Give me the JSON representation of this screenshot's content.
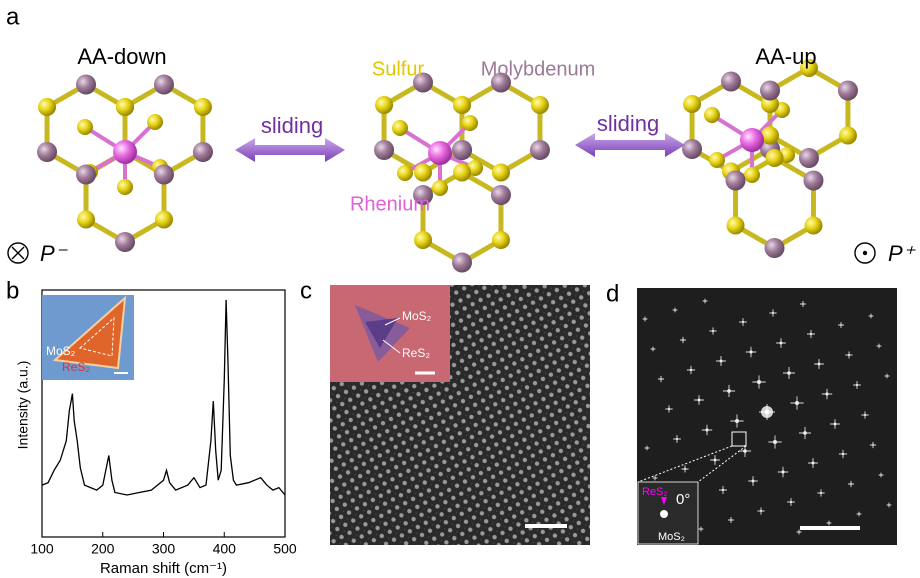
{
  "panel_labels": [
    "a",
    "b",
    "c",
    "d"
  ],
  "panel_a": {
    "left_title": "AA-down",
    "right_title": "AA-up",
    "atom_labels": {
      "sulfur": "Sulfur",
      "molybdenum": "Molybdenum",
      "rhenium": "Rhenium"
    },
    "arrows": [
      "sliding",
      "sliding"
    ],
    "polarization": [
      "P⁻",
      "P⁺"
    ]
  },
  "chart_data": {
    "type": "line",
    "xlabel": "Raman shift (cm⁻¹)",
    "ylabel": "Intensity (a.u.)",
    "x": [
      100,
      110,
      120,
      130,
      140,
      145,
      150,
      153,
      158,
      163,
      170,
      180,
      190,
      200,
      205,
      210,
      215,
      220,
      240,
      260,
      280,
      300,
      305,
      310,
      320,
      340,
      350,
      360,
      370,
      378,
      382,
      386,
      390,
      395,
      400,
      403,
      406,
      410,
      415,
      420,
      440,
      460,
      470,
      480,
      490,
      500
    ],
    "values": [
      0.21,
      0.22,
      0.27,
      0.31,
      0.39,
      0.51,
      0.58,
      0.47,
      0.39,
      0.28,
      0.21,
      0.2,
      0.19,
      0.21,
      0.27,
      0.33,
      0.23,
      0.18,
      0.17,
      0.18,
      0.19,
      0.23,
      0.27,
      0.22,
      0.19,
      0.21,
      0.24,
      0.2,
      0.21,
      0.39,
      0.55,
      0.35,
      0.23,
      0.27,
      0.64,
      0.96,
      0.72,
      0.33,
      0.23,
      0.21,
      0.22,
      0.24,
      0.21,
      0.19,
      0.2,
      0.17
    ],
    "color": "#000000",
    "xlim": [
      100,
      500
    ],
    "xticks": [
      100,
      200,
      300,
      400,
      500
    ],
    "ylim": [
      0,
      1
    ]
  },
  "panel_b_inset": {
    "labels": [
      "MoS₂",
      "ReS₂"
    ]
  },
  "panel_c_inset": {
    "labels": [
      "MoS₂",
      "ReS₂"
    ]
  },
  "panel_d_inset": {
    "labels": [
      "ReS₂",
      "MoS₂"
    ],
    "angle": "0°"
  }
}
